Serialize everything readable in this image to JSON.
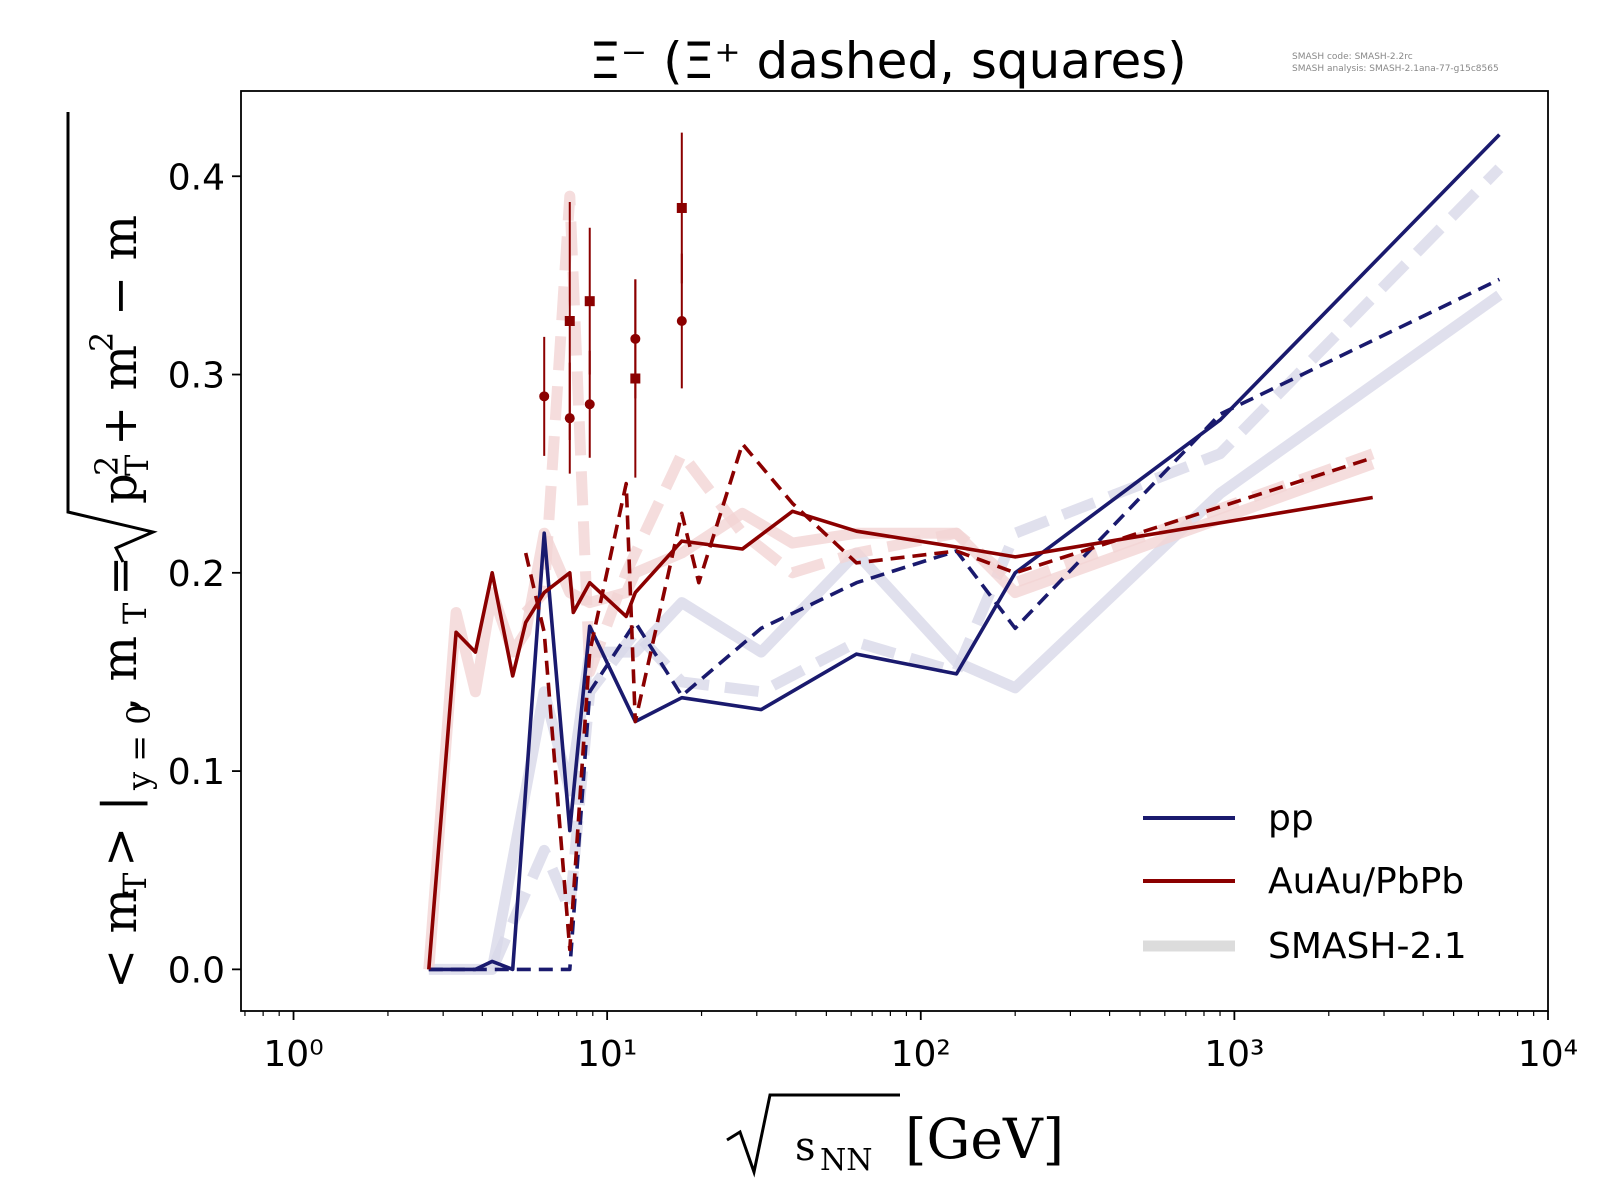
{
  "chart_data": {
    "type": "line",
    "title": "Ξ⁻ (Ξ⁺ dashed, squares)",
    "watermark": [
      "SMASH code:      SMASH-2.2rc",
      "SMASH analysis:  SMASH-2.1ana-77-g15c8565"
    ],
    "xlabel": "√sNN [GeV]",
    "ylabel": "<mT>|y=0, mT = √(pT² + m²) − m",
    "xscale": "log",
    "xlim": [
      0.68,
      10000
    ],
    "ylim": [
      -0.021,
      0.443
    ],
    "x_ticks": [
      1,
      10,
      100,
      1000,
      10000
    ],
    "x_tick_labels": [
      "10⁰",
      "10¹",
      "10²",
      "10³",
      "10⁴"
    ],
    "y_ticks": [
      0.0,
      0.1,
      0.2,
      0.3,
      0.4
    ],
    "y_tick_labels": [
      "0.0",
      "0.1",
      "0.2",
      "0.3",
      "0.4"
    ],
    "legend": {
      "position": "lower right",
      "entries": [
        {
          "label": "pp",
          "color": "#1a1a6e",
          "style": "solid"
        },
        {
          "label": "AuAu/PbPb",
          "color": "#8b0000",
          "style": "solid"
        },
        {
          "label": "SMASH-2.1",
          "color": "#dcdcdc",
          "style": "thick"
        }
      ]
    },
    "series": [
      {
        "key": "pp_xim",
        "color": "#1a1a6e",
        "dash": false,
        "ref": false,
        "x": [
          2.7,
          3.8,
          4.3,
          5.0,
          6.3,
          7.6,
          8.8,
          12.3,
          17.3,
          31,
          62.4,
          130,
          200,
          900,
          7000
        ],
        "y": [
          0.0,
          0.0,
          0.004,
          0.0,
          0.22,
          0.07,
          0.173,
          0.125,
          0.137,
          0.131,
          0.159,
          0.149,
          0.2,
          0.277,
          0.421
        ]
      },
      {
        "key": "pp_xip",
        "color": "#1a1a6e",
        "dash": true,
        "ref": false,
        "x": [
          2.7,
          4.3,
          6.3,
          7.6,
          8.8,
          12.3,
          17.3,
          31,
          62.4,
          130,
          200,
          900,
          7000
        ],
        "y": [
          0.0,
          0.0,
          0.0,
          0.0,
          0.14,
          0.175,
          0.138,
          0.172,
          0.195,
          0.211,
          0.172,
          0.28,
          0.348
        ]
      },
      {
        "key": "aa_xim",
        "color": "#8b0000",
        "dash": false,
        "ref": false,
        "x": [
          2.7,
          3.3,
          3.8,
          4.3,
          5.0,
          5.5,
          6.3,
          7.6,
          7.8,
          8.8,
          11.5,
          12.3,
          17.3,
          27,
          39,
          62.4,
          130,
          200,
          2760
        ],
        "y": [
          0.0,
          0.17,
          0.16,
          0.2,
          0.148,
          0.175,
          0.19,
          0.2,
          0.18,
          0.195,
          0.178,
          0.19,
          0.216,
          0.212,
          0.231,
          0.221,
          0.213,
          0.208,
          0.238
        ]
      },
      {
        "key": "aa_xip",
        "color": "#8b0000",
        "dash": true,
        "ref": false,
        "x": [
          5.5,
          6.3,
          7.6,
          8.8,
          11.5,
          12.3,
          17.3,
          19.6,
          27,
          39,
          62.4,
          130,
          200,
          2760
        ],
        "y": [
          0.21,
          0.17,
          0.01,
          0.16,
          0.245,
          0.125,
          0.23,
          0.195,
          0.265,
          0.235,
          0.205,
          0.211,
          0.2,
          0.258
        ]
      },
      {
        "key": "ref_pp_xim",
        "color": "#d8d8e8",
        "dash": false,
        "ref": true,
        "x": [
          2.7,
          4.3,
          6.3,
          7.6,
          8.8,
          12.3,
          17.3,
          31,
          62.4,
          130,
          200,
          900,
          7000
        ],
        "y": [
          0.0,
          0.0,
          0.14,
          0.09,
          0.16,
          0.16,
          0.185,
          0.16,
          0.21,
          0.155,
          0.142,
          0.24,
          0.34
        ]
      },
      {
        "key": "ref_pp_xip",
        "color": "#d8d8e8",
        "dash": true,
        "ref": true,
        "x": [
          4.3,
          6.3,
          7.6,
          8.8,
          12.3,
          17.3,
          31,
          62.4,
          130,
          200,
          900,
          7000
        ],
        "y": [
          0.0,
          0.06,
          0.03,
          0.14,
          0.17,
          0.145,
          0.14,
          0.165,
          0.15,
          0.22,
          0.26,
          0.404
        ]
      },
      {
        "key": "ref_aa_xim",
        "color": "#f2d4d4",
        "dash": false,
        "ref": true,
        "x": [
          2.7,
          3.3,
          3.8,
          4.3,
          5.0,
          5.5,
          6.3,
          7.6,
          8.8,
          11.5,
          12.3,
          17.3,
          27,
          39,
          62.4,
          130,
          200,
          2760
        ],
        "y": [
          0.0,
          0.18,
          0.14,
          0.19,
          0.16,
          0.17,
          0.22,
          0.19,
          0.185,
          0.19,
          0.2,
          0.21,
          0.23,
          0.215,
          0.22,
          0.22,
          0.19,
          0.255
        ]
      },
      {
        "key": "ref_aa_xip",
        "color": "#f2d4d4",
        "dash": true,
        "ref": true,
        "x": [
          5.5,
          6.3,
          7.6,
          8.8,
          11.5,
          12.3,
          17.3,
          27,
          39,
          62.4,
          130,
          200,
          2760
        ],
        "y": [
          0.18,
          0.19,
          0.39,
          0.15,
          0.2,
          0.21,
          0.26,
          0.22,
          0.2,
          0.21,
          0.22,
          0.195,
          0.26
        ]
      }
    ],
    "data_points": [
      {
        "x": 6.3,
        "y": 0.289,
        "err": 0.03,
        "marker": "circle",
        "color": "#8b0000"
      },
      {
        "x": 7.6,
        "y": 0.278,
        "err": 0.028,
        "marker": "circle",
        "color": "#8b0000"
      },
      {
        "x": 8.8,
        "y": 0.285,
        "err": 0.027,
        "marker": "circle",
        "color": "#8b0000"
      },
      {
        "x": 12.3,
        "y": 0.318,
        "err": 0.03,
        "marker": "circle",
        "color": "#8b0000"
      },
      {
        "x": 17.3,
        "y": 0.327,
        "err": 0.034,
        "marker": "circle",
        "color": "#8b0000"
      },
      {
        "x": 7.6,
        "y": 0.327,
        "err": 0.06,
        "marker": "square",
        "color": "#8b0000"
      },
      {
        "x": 8.8,
        "y": 0.337,
        "err": 0.037,
        "marker": "square",
        "color": "#8b0000"
      },
      {
        "x": 12.3,
        "y": 0.298,
        "err": 0.05,
        "marker": "square",
        "color": "#8b0000"
      },
      {
        "x": 17.3,
        "y": 0.384,
        "err": 0.038,
        "marker": "square",
        "color": "#8b0000"
      }
    ]
  }
}
